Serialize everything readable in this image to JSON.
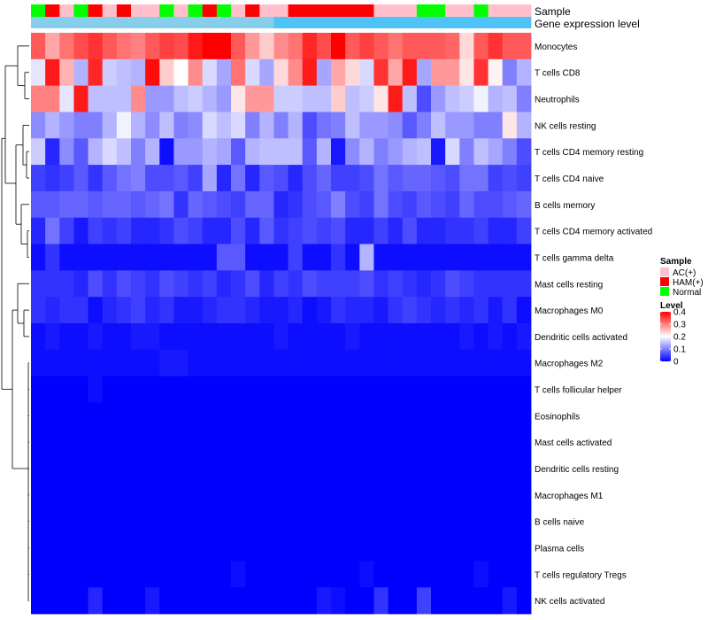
{
  "chart_data": {
    "type": "heatmap",
    "title": "",
    "annotation_rows": [
      {
        "name": "Sample",
        "values": [
          "Normal",
          "HAM(+)",
          "AC(+)",
          "Normal",
          "HAM(+)",
          "AC(+)",
          "HAM(+)",
          "AC(+)",
          "AC(+)",
          "Normal",
          "AC(+)",
          "Normal",
          "HAM(+)",
          "Normal",
          "AC(+)",
          "HAM(+)",
          "AC(+)",
          "AC(+)",
          "HAM(+)",
          "HAM(+)",
          "HAM(+)",
          "HAM(+)",
          "HAM(+)",
          "HAM(+)",
          "AC(+)",
          "AC(+)",
          "AC(+)",
          "Normal",
          "Normal",
          "AC(+)",
          "AC(+)",
          "Normal",
          "AC(+)",
          "AC(+)",
          "AC(+)"
        ]
      },
      {
        "name": "Gene expression level",
        "values": [
          "low",
          "low",
          "low",
          "low",
          "low",
          "low",
          "low",
          "low",
          "low",
          "low",
          "low",
          "low",
          "low",
          "low",
          "low",
          "low",
          "low",
          "high",
          "high",
          "high",
          "high",
          "high",
          "high",
          "high",
          "high",
          "high",
          "high",
          "high",
          "high",
          "high",
          "high",
          "high",
          "high",
          "high",
          "high"
        ]
      }
    ],
    "rows": [
      "Monocytes",
      "T cells CD8",
      "Neutrophils",
      "NK cells resting",
      "T cells CD4 memory resting",
      "T cells CD4 naive",
      "B cells memory",
      "T cells CD4 memory activated",
      "T cells gamma delta",
      "Mast cells resting",
      "Macrophages M0",
      "Dendritic cells activated",
      "Macrophages M2",
      "T cells follicular helper",
      "Eosinophils",
      "Mast cells activated",
      "Dendritic cells resting",
      "Macrophages M1",
      "B cells naive",
      "Plasma cells",
      "T cells regulatory  Tregs",
      "NK cells activated"
    ],
    "values": [
      [
        0.33,
        0.27,
        0.31,
        0.34,
        0.36,
        0.33,
        0.31,
        0.3,
        0.33,
        0.35,
        0.34,
        0.38,
        0.4,
        0.4,
        0.33,
        0.28,
        0.24,
        0.29,
        0.31,
        0.37,
        0.34,
        0.4,
        0.33,
        0.35,
        0.33,
        0.31,
        0.33,
        0.33,
        0.33,
        0.32,
        0.23,
        0.33,
        0.36,
        0.33,
        0.33
      ],
      [
        0.18,
        0.38,
        0.26,
        0.14,
        0.37,
        0.16,
        0.15,
        0.14,
        0.39,
        0.24,
        0.2,
        0.29,
        0.17,
        0.13,
        0.31,
        0.17,
        0.13,
        0.23,
        0.29,
        0.38,
        0.13,
        0.27,
        0.23,
        0.17,
        0.36,
        0.27,
        0.38,
        0.13,
        0.28,
        0.28,
        0.22,
        0.36,
        0.21,
        0.1,
        0.14
      ],
      [
        0.3,
        0.3,
        0.18,
        0.38,
        0.15,
        0.15,
        0.15,
        0.29,
        0.12,
        0.12,
        0.15,
        0.16,
        0.14,
        0.12,
        0.22,
        0.28,
        0.28,
        0.16,
        0.16,
        0.15,
        0.15,
        0.24,
        0.15,
        0.16,
        0.22,
        0.38,
        0.15,
        0.06,
        0.12,
        0.15,
        0.16,
        0.19,
        0.14,
        0.15,
        0.1
      ],
      [
        0.11,
        0.14,
        0.12,
        0.1,
        0.1,
        0.14,
        0.19,
        0.14,
        0.11,
        0.15,
        0.1,
        0.11,
        0.17,
        0.15,
        0.17,
        0.1,
        0.14,
        0.1,
        0.14,
        0.06,
        0.09,
        0.1,
        0.15,
        0.12,
        0.12,
        0.11,
        0.07,
        0.1,
        0.15,
        0.12,
        0.12,
        0.1,
        0.1,
        0.22,
        0.14
      ],
      [
        0.16,
        0.03,
        0.11,
        0.07,
        0.14,
        0.17,
        0.15,
        0.1,
        0.14,
        0.01,
        0.12,
        0.12,
        0.14,
        0.13,
        0.07,
        0.14,
        0.15,
        0.15,
        0.15,
        0.07,
        0.14,
        0.02,
        0.11,
        0.14,
        0.1,
        0.12,
        0.14,
        0.15,
        0.02,
        0.17,
        0.1,
        0.15,
        0.13,
        0.1,
        0.06
      ],
      [
        0.05,
        0.04,
        0.05,
        0.07,
        0.04,
        0.07,
        0.09,
        0.1,
        0.06,
        0.06,
        0.07,
        0.05,
        0.13,
        0.03,
        0.09,
        0.03,
        0.07,
        0.06,
        0.03,
        0.06,
        0.08,
        0.05,
        0.05,
        0.06,
        0.09,
        0.07,
        0.08,
        0.08,
        0.07,
        0.06,
        0.09,
        0.09,
        0.05,
        0.06,
        0.05
      ],
      [
        0.07,
        0.07,
        0.08,
        0.08,
        0.07,
        0.08,
        0.08,
        0.07,
        0.08,
        0.09,
        0.04,
        0.08,
        0.07,
        0.06,
        0.05,
        0.08,
        0.08,
        0.03,
        0.04,
        0.06,
        0.07,
        0.1,
        0.06,
        0.05,
        0.09,
        0.06,
        0.05,
        0.07,
        0.06,
        0.05,
        0.08,
        0.06,
        0.06,
        0.07,
        0.08
      ],
      [
        0.03,
        0.09,
        0.05,
        0.02,
        0.05,
        0.04,
        0.05,
        0.03,
        0.03,
        0.04,
        0.06,
        0.05,
        0.03,
        0.03,
        0.06,
        0.03,
        0.07,
        0.04,
        0.05,
        0.06,
        0.05,
        0.06,
        0.03,
        0.03,
        0.05,
        0.03,
        0.06,
        0.03,
        0.03,
        0.04,
        0.04,
        0.05,
        0.03,
        0.03,
        0.05
      ],
      [
        0.01,
        0.04,
        0.01,
        0.01,
        0.01,
        0.01,
        0.01,
        0.01,
        0.01,
        0.01,
        0.01,
        0.01,
        0.01,
        0.07,
        0.07,
        0.01,
        0.01,
        0.01,
        0.05,
        0.01,
        0.01,
        0.04,
        0.01,
        0.14,
        0.01,
        0.01,
        0.01,
        0.01,
        0.01,
        0.01,
        0.01,
        0.01,
        0.01,
        0.01,
        0.01
      ],
      [
        0.04,
        0.04,
        0.04,
        0.03,
        0.06,
        0.04,
        0.06,
        0.05,
        0.04,
        0.06,
        0.05,
        0.04,
        0.05,
        0.03,
        0.04,
        0.06,
        0.03,
        0.05,
        0.04,
        0.06,
        0.05,
        0.05,
        0.05,
        0.06,
        0.04,
        0.05,
        0.04,
        0.03,
        0.04,
        0.06,
        0.05,
        0.04,
        0.04,
        0.04,
        0.04
      ],
      [
        0.04,
        0.03,
        0.04,
        0.04,
        0.01,
        0.03,
        0.04,
        0.05,
        0.03,
        0.04,
        0.02,
        0.02,
        0.03,
        0.04,
        0.04,
        0.03,
        0.02,
        0.02,
        0.03,
        0.01,
        0.02,
        0.04,
        0.03,
        0.03,
        0.02,
        0.04,
        0.05,
        0.04,
        0.03,
        0.04,
        0.03,
        0.04,
        0.02,
        0.04,
        0.01
      ],
      [
        0.01,
        0.02,
        0.01,
        0.01,
        0.02,
        0.01,
        0.01,
        0.02,
        0.02,
        0.01,
        0.01,
        0.01,
        0.01,
        0.01,
        0.01,
        0.01,
        0.01,
        0.02,
        0.01,
        0.01,
        0.01,
        0.01,
        0.02,
        0.01,
        0.01,
        0.01,
        0.01,
        0.01,
        0.01,
        0.01,
        0.02,
        0.01,
        0.02,
        0.01,
        0.02
      ],
      [
        0.01,
        0.01,
        0.01,
        0.01,
        0.01,
        0.01,
        0.01,
        0.01,
        0.01,
        0.02,
        0.02,
        0.01,
        0.01,
        0.01,
        0.01,
        0.01,
        0.01,
        0.01,
        0.01,
        0.01,
        0.01,
        0.01,
        0.01,
        0.01,
        0.01,
        0.01,
        0.01,
        0.01,
        0.01,
        0.01,
        0.01,
        0.01,
        0.01,
        0.01,
        0.01
      ],
      [
        0,
        0,
        0,
        0,
        0.01,
        0,
        0,
        0,
        0,
        0,
        0,
        0,
        0,
        0,
        0,
        0,
        0,
        0,
        0,
        0,
        0,
        0,
        0,
        0,
        0,
        0,
        0,
        0,
        0,
        0,
        0,
        0,
        0,
        0,
        0
      ],
      [
        0,
        0,
        0,
        0,
        0,
        0,
        0,
        0,
        0,
        0,
        0,
        0,
        0,
        0,
        0,
        0,
        0,
        0,
        0,
        0,
        0,
        0,
        0,
        0,
        0,
        0,
        0,
        0,
        0,
        0,
        0,
        0,
        0,
        0,
        0
      ],
      [
        0,
        0,
        0,
        0,
        0,
        0,
        0,
        0,
        0,
        0,
        0,
        0,
        0,
        0,
        0,
        0,
        0,
        0,
        0,
        0,
        0,
        0,
        0,
        0,
        0,
        0,
        0,
        0,
        0,
        0,
        0,
        0,
        0,
        0,
        0
      ],
      [
        0,
        0,
        0,
        0,
        0,
        0,
        0,
        0,
        0,
        0,
        0,
        0,
        0,
        0,
        0,
        0,
        0,
        0,
        0,
        0,
        0,
        0,
        0,
        0,
        0,
        0,
        0,
        0,
        0,
        0,
        0,
        0,
        0,
        0,
        0
      ],
      [
        0,
        0,
        0,
        0,
        0,
        0,
        0,
        0,
        0,
        0,
        0,
        0,
        0,
        0,
        0,
        0,
        0,
        0,
        0,
        0,
        0,
        0,
        0,
        0,
        0,
        0,
        0,
        0,
        0,
        0,
        0,
        0,
        0,
        0,
        0
      ],
      [
        0,
        0,
        0,
        0,
        0,
        0,
        0,
        0,
        0,
        0,
        0,
        0,
        0,
        0,
        0,
        0,
        0,
        0,
        0,
        0,
        0,
        0,
        0,
        0,
        0,
        0,
        0,
        0,
        0,
        0,
        0,
        0,
        0,
        0,
        0
      ],
      [
        0,
        0,
        0,
        0,
        0,
        0,
        0,
        0,
        0,
        0,
        0,
        0,
        0,
        0,
        0,
        0,
        0,
        0,
        0,
        0,
        0,
        0,
        0,
        0,
        0,
        0,
        0,
        0,
        0,
        0,
        0,
        0,
        0,
        0,
        0
      ],
      [
        0,
        0,
        0,
        0,
        0,
        0,
        0,
        0,
        0,
        0,
        0,
        0,
        0,
        0,
        0.01,
        0,
        0,
        0,
        0,
        0,
        0,
        0,
        0,
        0.01,
        0,
        0,
        0,
        0,
        0,
        0,
        0,
        0.01,
        0,
        0,
        0
      ],
      [
        0,
        0,
        0,
        0,
        0.03,
        0,
        0,
        0,
        0.02,
        0,
        0,
        0,
        0,
        0,
        0,
        0,
        0,
        0,
        0,
        0,
        0.02,
        0.01,
        0,
        0,
        0.04,
        0,
        0,
        0.05,
        0,
        0,
        0,
        0,
        0,
        0.02,
        0
      ]
    ],
    "color_scale": {
      "min": 0,
      "mid": 0.2,
      "max": 0.4,
      "low_color": "#0000ff",
      "mid_color": "#ffffff",
      "high_color": "#ff0000"
    },
    "legends": {
      "sample": {
        "title": "Sample",
        "entries": [
          {
            "label": "AC(+)",
            "color": "#ffc0cb"
          },
          {
            "label": "HAM(+)",
            "color": "#ff0000"
          },
          {
            "label": "Normal",
            "color": "#00ff00"
          }
        ]
      },
      "level": {
        "title": "Level",
        "ticks": [
          "0.4",
          "0.3",
          "0.2",
          "0.1",
          "0"
        ],
        "tick_values": [
          0.4,
          0.3,
          0.2,
          0.1,
          0
        ]
      }
    },
    "gene_expression_colors": {
      "low": "#87ceeb",
      "high": "#4fc3f7"
    },
    "dendrogram": "row clustering tree (left side)"
  }
}
